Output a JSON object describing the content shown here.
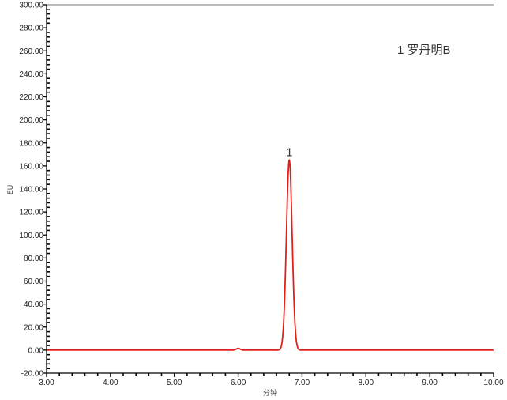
{
  "chart_data": {
    "type": "line",
    "title": "",
    "xlabel": "分钟",
    "ylabel": "EU",
    "xlim": [
      3.0,
      10.0
    ],
    "ylim": [
      -20.0,
      300.0
    ],
    "x_ticks": [
      "3.00",
      "4.00",
      "5.00",
      "6.00",
      "7.00",
      "8.00",
      "9.00",
      "10.00"
    ],
    "y_ticks": [
      "-20.00",
      "0.00",
      "20.00",
      "40.00",
      "60.00",
      "80.00",
      "100.00",
      "120.00",
      "140.00",
      "160.00",
      "180.00",
      "200.00",
      "220.00",
      "240.00",
      "260.00",
      "280.00",
      "300.00"
    ],
    "grid": false,
    "line_color": "#e0201c",
    "baseline": 0.0,
    "peaks": [
      {
        "label": "1",
        "retention_time": 6.8,
        "height": 165.0,
        "sigma": 0.045
      },
      {
        "label": "",
        "retention_time": 6.0,
        "height": 1.5,
        "sigma": 0.03
      }
    ],
    "legend": {
      "entry": "1 罗丹明B",
      "placement": "top-right"
    }
  }
}
